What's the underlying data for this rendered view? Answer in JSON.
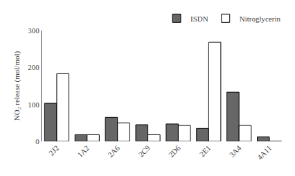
{
  "chart_data": {
    "type": "bar",
    "categories": [
      "2J2",
      "1A2",
      "2A6",
      "2C9",
      "2D6",
      "2E1",
      "3A4",
      "4A11"
    ],
    "series": [
      {
        "name": "ISDN",
        "color": "#676767",
        "values": [
          103,
          18,
          65,
          45,
          47,
          35,
          133,
          12
        ]
      },
      {
        "name": "Nitroglycerin",
        "color": "#ffffff",
        "values": [
          183,
          18,
          50,
          18,
          43,
          268,
          43,
          0
        ]
      }
    ],
    "ylabel": "NO₂ release (mol/mol)",
    "ylim": [
      0,
      300
    ],
    "yticks": [
      0,
      100,
      200,
      300
    ],
    "legend": "upper right",
    "grid": false
  }
}
